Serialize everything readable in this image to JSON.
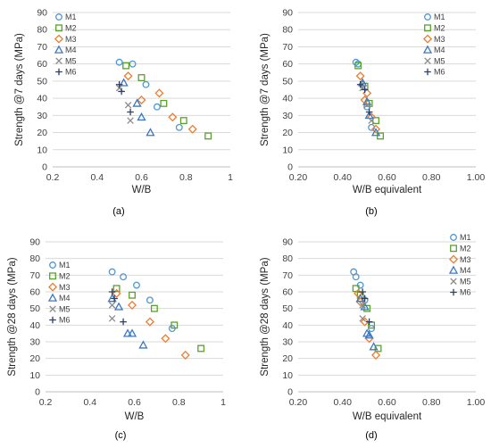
{
  "panels": [
    "(a)",
    "(b)",
    "(c)",
    "(d)"
  ],
  "series_style": {
    "M1": {
      "marker": "circle",
      "color": "#4f97d3"
    },
    "M2": {
      "marker": "square",
      "color": "#5aa02c"
    },
    "M3": {
      "marker": "diamond",
      "color": "#ed7d31"
    },
    "M4": {
      "marker": "triangle",
      "color": "#3a78c4"
    },
    "M5": {
      "marker": "x",
      "color": "#8c8c8c"
    },
    "M6": {
      "marker": "plus",
      "color": "#2f3f5f"
    }
  },
  "chart_data": [
    {
      "type": "scatter",
      "panel": "(a)",
      "xlabel": "W/B",
      "ylabel": "Strength @7 days (MPa)",
      "xlim": [
        0.2,
        1.0
      ],
      "ylim": [
        0,
        90
      ],
      "xticks": [
        0.2,
        0.4,
        0.6,
        0.8,
        1.0
      ],
      "xtick_labels": [
        "0.2",
        "0.4",
        "0.6",
        "0.8",
        "1"
      ],
      "yticks": [
        0,
        10,
        20,
        30,
        40,
        50,
        60,
        70,
        80,
        90
      ],
      "ytick_labels": [
        "0",
        "10",
        "20",
        "30",
        "40",
        "50",
        "60",
        "70",
        "80",
        "90"
      ],
      "grid": "horizontal",
      "legend": "top-left",
      "series": [
        {
          "name": "M1",
          "points": [
            [
              0.5,
              61
            ],
            [
              0.56,
              60
            ],
            [
              0.62,
              48
            ],
            [
              0.67,
              35
            ],
            [
              0.77,
              23
            ]
          ]
        },
        {
          "name": "M2",
          "points": [
            [
              0.53,
              59
            ],
            [
              0.6,
              52
            ],
            [
              0.7,
              37
            ],
            [
              0.79,
              27
            ],
            [
              0.9,
              18
            ]
          ]
        },
        {
          "name": "M3",
          "points": [
            [
              0.54,
              53
            ],
            [
              0.6,
              39
            ],
            [
              0.68,
              43
            ],
            [
              0.74,
              29
            ],
            [
              0.83,
              22
            ]
          ]
        },
        {
          "name": "M4",
          "points": [
            [
              0.52,
              49
            ],
            [
              0.58,
              37
            ],
            [
              0.6,
              29
            ],
            [
              0.64,
              20
            ]
          ]
        },
        {
          "name": "M5",
          "points": [
            [
              0.5,
              46
            ],
            [
              0.54,
              36
            ],
            [
              0.55,
              27
            ]
          ]
        },
        {
          "name": "M6",
          "points": [
            [
              0.5,
              48
            ],
            [
              0.51,
              44
            ],
            [
              0.55,
              32
            ]
          ]
        }
      ]
    },
    {
      "type": "scatter",
      "panel": "(b)",
      "xlabel": "W/B equivalent",
      "ylabel": "Strength @7 days (MPa)",
      "xlim": [
        0.2,
        1.0
      ],
      "ylim": [
        0,
        90
      ],
      "xticks": [
        0.2,
        0.4,
        0.6,
        0.8,
        1.0
      ],
      "xtick_labels": [
        "0.20",
        "0.40",
        "0.60",
        "0.80",
        "1.00"
      ],
      "yticks": [
        0,
        10,
        20,
        30,
        40,
        50,
        60,
        70,
        80,
        90
      ],
      "ytick_labels": [
        "0",
        "10",
        "20",
        "30",
        "40",
        "50",
        "60",
        "70",
        "80",
        "90"
      ],
      "grid": "horizontal",
      "legend": "top-right",
      "series": [
        {
          "name": "M1",
          "points": [
            [
              0.46,
              61
            ],
            [
              0.47,
              60
            ],
            [
              0.49,
              48
            ],
            [
              0.51,
              35
            ],
            [
              0.53,
              23
            ]
          ]
        },
        {
          "name": "M2",
          "points": [
            [
              0.47,
              59
            ],
            [
              0.5,
              47
            ],
            [
              0.52,
              37
            ],
            [
              0.55,
              27
            ],
            [
              0.57,
              18
            ]
          ]
        },
        {
          "name": "M3",
          "points": [
            [
              0.48,
              53
            ],
            [
              0.5,
              39
            ],
            [
              0.51,
              43
            ],
            [
              0.53,
              29
            ],
            [
              0.55,
              22
            ]
          ]
        },
        {
          "name": "M4",
          "points": [
            [
              0.49,
              49
            ],
            [
              0.51,
              38
            ],
            [
              0.52,
              30
            ],
            [
              0.55,
              20
            ]
          ]
        },
        {
          "name": "M5",
          "points": [
            [
              0.49,
              46
            ],
            [
              0.51,
              36
            ],
            [
              0.53,
              27
            ]
          ]
        },
        {
          "name": "M6",
          "points": [
            [
              0.48,
              48
            ],
            [
              0.5,
              45
            ],
            [
              0.52,
              32
            ]
          ]
        }
      ]
    },
    {
      "type": "scatter",
      "panel": "(c)",
      "xlabel": "W/B",
      "ylabel": "Strength @28 days (MPa)",
      "xlim": [
        0.2,
        1.0
      ],
      "ylim": [
        0,
        90
      ],
      "xticks": [
        0.2,
        0.4,
        0.6,
        0.8,
        1.0
      ],
      "xtick_labels": [
        "0.2",
        "0.4",
        "0.6",
        "0.8",
        "1"
      ],
      "yticks": [
        0,
        10,
        20,
        30,
        40,
        50,
        60,
        70,
        80,
        90
      ],
      "ytick_labels": [
        "0",
        "10",
        "20",
        "30",
        "40",
        "50",
        "60",
        "70",
        "80",
        "90"
      ],
      "grid": "horizontal",
      "legend": "top-left",
      "series": [
        {
          "name": "M1",
          "points": [
            [
              0.5,
              72
            ],
            [
              0.55,
              69
            ],
            [
              0.61,
              64
            ],
            [
              0.67,
              55
            ],
            [
              0.77,
              38
            ]
          ]
        },
        {
          "name": "M2",
          "points": [
            [
              0.52,
              62
            ],
            [
              0.59,
              58
            ],
            [
              0.69,
              50
            ],
            [
              0.78,
              40
            ],
            [
              0.9,
              26
            ]
          ]
        },
        {
          "name": "M3",
          "points": [
            [
              0.52,
              59
            ],
            [
              0.59,
              52
            ],
            [
              0.67,
              42
            ],
            [
              0.74,
              32
            ],
            [
              0.83,
              22
            ]
          ]
        },
        {
          "name": "M4",
          "points": [
            [
              0.5,
              56
            ],
            [
              0.53,
              51
            ],
            [
              0.57,
              35
            ],
            [
              0.59,
              35
            ],
            [
              0.64,
              28
            ]
          ]
        },
        {
          "name": "M5",
          "points": [
            [
              0.5,
              52
            ],
            [
              0.5,
              44
            ]
          ]
        },
        {
          "name": "M6",
          "points": [
            [
              0.5,
              60
            ],
            [
              0.51,
              56
            ],
            [
              0.55,
              42
            ]
          ]
        }
      ]
    },
    {
      "type": "scatter",
      "panel": "(d)",
      "xlabel": "W/B equivalent",
      "ylabel": "Strength @28 days (MPa)",
      "xlim": [
        0.2,
        1.0
      ],
      "ylim": [
        0,
        90
      ],
      "xticks": [
        0.2,
        0.4,
        0.6,
        0.8,
        1.0
      ],
      "xtick_labels": [
        "0.20",
        "0.40",
        "0.60",
        "0.80",
        "1.00"
      ],
      "yticks": [
        0,
        10,
        20,
        30,
        40,
        50,
        60,
        70,
        80,
        90
      ],
      "ytick_labels": [
        "0",
        "10",
        "20",
        "30",
        "40",
        "50",
        "60",
        "70",
        "80",
        "90"
      ],
      "grid": "horizontal",
      "legend": "top-right",
      "series": [
        {
          "name": "M1",
          "points": [
            [
              0.45,
              72
            ],
            [
              0.46,
              69
            ],
            [
              0.48,
              64
            ],
            [
              0.5,
              55
            ],
            [
              0.53,
              38
            ]
          ]
        },
        {
          "name": "M2",
          "points": [
            [
              0.46,
              62
            ],
            [
              0.48,
              58
            ],
            [
              0.51,
              50
            ],
            [
              0.53,
              40
            ],
            [
              0.56,
              26
            ]
          ]
        },
        {
          "name": "M3",
          "points": [
            [
              0.47,
              59
            ],
            [
              0.48,
              54
            ],
            [
              0.5,
              42
            ],
            [
              0.52,
              32
            ],
            [
              0.55,
              22
            ]
          ]
        },
        {
          "name": "M4",
          "points": [
            [
              0.48,
              56
            ],
            [
              0.5,
              51
            ],
            [
              0.51,
              35
            ],
            [
              0.52,
              34
            ],
            [
              0.54,
              27
            ]
          ]
        },
        {
          "name": "M5",
          "points": [
            [
              0.49,
              52
            ],
            [
              0.49,
              44
            ]
          ]
        },
        {
          "name": "M6",
          "points": [
            [
              0.49,
              60
            ],
            [
              0.5,
              56
            ],
            [
              0.52,
              42
            ]
          ]
        }
      ]
    }
  ]
}
